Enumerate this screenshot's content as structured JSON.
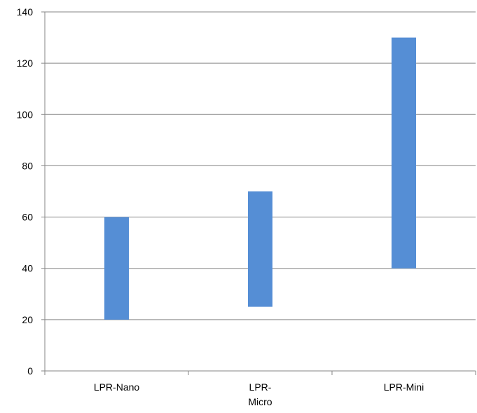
{
  "chart_data": {
    "type": "bar",
    "subtype": "floating-range",
    "categories": [
      {
        "lines": [
          "LPR-Nano"
        ]
      },
      {
        "lines": [
          "LPR-",
          "Micro"
        ]
      },
      {
        "lines": [
          "LPR-Mini"
        ]
      }
    ],
    "series": [
      {
        "low": [
          20,
          25,
          40
        ],
        "high": [
          60,
          70,
          130
        ],
        "color": "#558ed5"
      }
    ],
    "ylim": [
      0,
      140
    ],
    "yticks": [
      "0",
      "20",
      "40",
      "60",
      "80",
      "100",
      "120",
      "140"
    ],
    "grid": true,
    "legend": "none",
    "colors": {
      "bar": "#558ed5",
      "grid": "#868686",
      "text": "#000000"
    }
  }
}
